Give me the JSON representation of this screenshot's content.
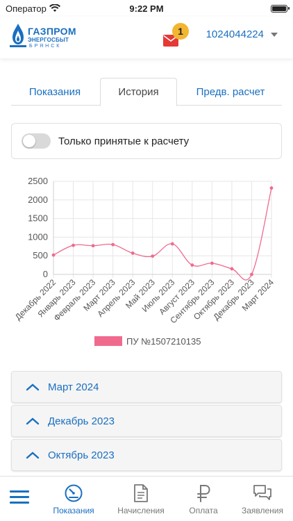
{
  "status_bar": {
    "carrier": "Оператор",
    "time": "9:22 PM"
  },
  "header": {
    "logo_main": "ГАЗПРОМ",
    "logo_sub1": "ЭНЕРГОСБЫТ",
    "logo_sub2": "БРЯНСК",
    "notification_count": "1",
    "account_number": "1024044224",
    "brand_color": "#1a6fc0",
    "mail_color": "#e53935",
    "badge_color": "#f2b631"
  },
  "tabs": [
    {
      "label": "Показания",
      "active": false
    },
    {
      "label": "История",
      "active": true
    },
    {
      "label": "Предв. расчет",
      "active": false
    }
  ],
  "filter": {
    "label": "Только принятые к расчету",
    "enabled": false
  },
  "chart_data": {
    "type": "line",
    "categories": [
      "Декабрь 2022",
      "Январь 2023",
      "Февраль 2023",
      "Март 2023",
      "Апрель 2023",
      "Май 2023",
      "Июль 2023",
      "Август 2023",
      "Сентябрь 2023",
      "Октябрь 2023",
      "Декабрь 2023",
      "Март 2024"
    ],
    "series": [
      {
        "name": "ПУ №1507210135",
        "values": [
          520,
          780,
          770,
          800,
          570,
          490,
          820,
          250,
          300,
          150,
          0,
          2320
        ],
        "color": "#f06a8e"
      }
    ],
    "yticks": [
      "0",
      "500",
      "1000",
      "1500",
      "2000",
      "2500"
    ],
    "ylim": [
      0,
      2500
    ],
    "grid": true,
    "legend": "bottom"
  },
  "history": [
    {
      "label": "Март 2024"
    },
    {
      "label": "Декабрь 2023"
    },
    {
      "label": "Октябрь 2023"
    }
  ],
  "bottom_nav": [
    {
      "label": "Показания",
      "icon": "gauge-icon",
      "active": true
    },
    {
      "label": "Начисления",
      "icon": "document-icon",
      "active": false
    },
    {
      "label": "Оплата",
      "icon": "ruble-icon",
      "active": false
    },
    {
      "label": "Заявления",
      "icon": "chat-icon",
      "active": false
    }
  ]
}
